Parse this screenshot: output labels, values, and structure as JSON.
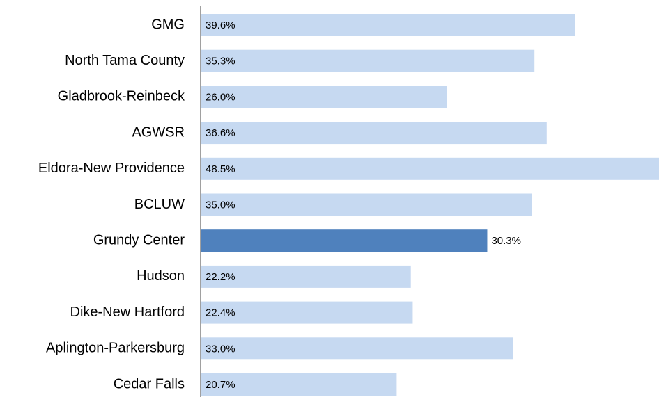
{
  "chart_data": {
    "type": "barh",
    "categories": [
      "GMG",
      "North Tama County",
      "Gladbrook-Reinbeck",
      "AGWSR",
      "Eldora-New Providence",
      "BCLUW",
      "Grundy Center",
      "Hudson",
      "Dike-New Hartford",
      "Aplington-Parkersburg",
      "Cedar Falls"
    ],
    "values": [
      39.6,
      35.3,
      26.0,
      36.6,
      48.5,
      35.0,
      30.3,
      22.2,
      22.4,
      33.0,
      20.7
    ],
    "value_labels": [
      "39.6%",
      "35.3%",
      "26.0%",
      "36.6%",
      "48.5%",
      "35.0%",
      "30.3%",
      "22.2%",
      "22.4%",
      "33.0%",
      "20.7%"
    ],
    "colors": [
      "#c6d9f1",
      "#c6d9f1",
      "#c6d9f1",
      "#c6d9f1",
      "#c6d9f1",
      "#c6d9f1",
      "#4f81bd",
      "#c6d9f1",
      "#c6d9f1",
      "#c6d9f1",
      "#c6d9f1"
    ]
  }
}
